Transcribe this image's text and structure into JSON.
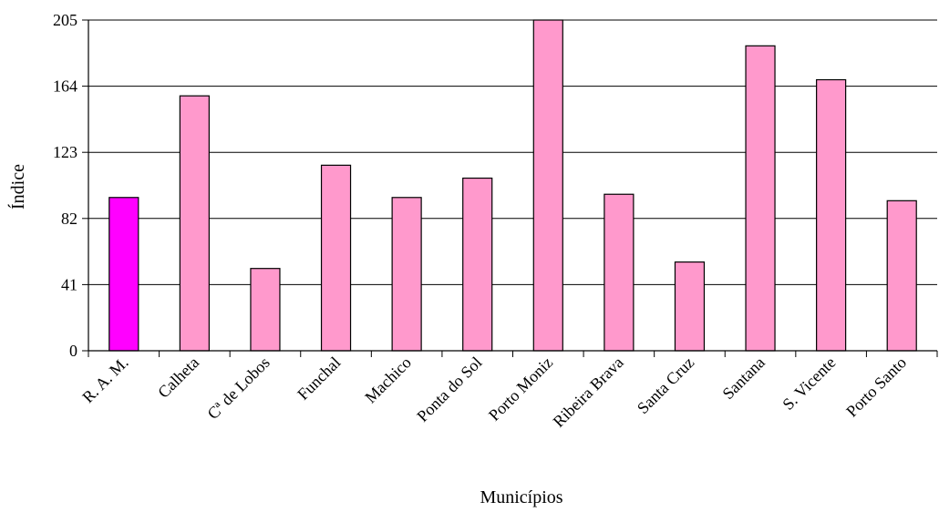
{
  "chart_data": {
    "type": "bar",
    "title": "",
    "xlabel": "Municípios",
    "ylabel": "Índice",
    "ylim": [
      0,
      205
    ],
    "yticks": [
      0,
      41,
      82,
      123,
      164,
      205
    ],
    "grid": true,
    "categories": [
      "R. A. M.",
      "Calheta",
      "Cª de Lobos",
      "Funchal",
      "Machico",
      "Ponta do Sol",
      "Porto Moniz",
      "Ribeira Brava",
      "Santa Cruz",
      "Santana",
      "S. Vicente",
      "Porto Santo"
    ],
    "values": [
      95,
      158,
      51,
      115,
      95,
      107,
      205,
      97,
      55,
      189,
      168,
      93
    ],
    "colors": {
      "highlight": "#ff00ff",
      "bar": "#ff99cc",
      "outline": "#000000",
      "grid": "#000000"
    },
    "highlight_index": 0
  }
}
